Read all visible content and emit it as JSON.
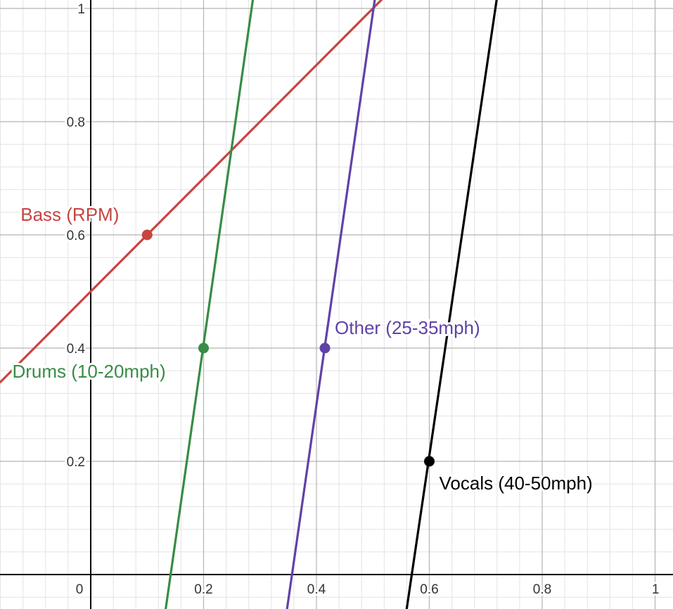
{
  "chart_data": {
    "type": "line",
    "title": "",
    "xlabel": "",
    "ylabel": "",
    "xlim": [
      -0.16,
      1.03
    ],
    "ylim": [
      -0.06,
      1.02
    ],
    "grid": true,
    "x_ticks": [
      {
        "value": 0,
        "label": "0"
      },
      {
        "value": 0.2,
        "label": "0.2"
      },
      {
        "value": 0.4,
        "label": "0.4"
      },
      {
        "value": 0.6,
        "label": "0.6"
      },
      {
        "value": 0.8,
        "label": "0.8"
      },
      {
        "value": 1,
        "label": "1"
      }
    ],
    "y_ticks": [
      {
        "value": 0.2,
        "label": "0.2"
      },
      {
        "value": 0.4,
        "label": "0.4"
      },
      {
        "value": 0.6,
        "label": "0.6"
      },
      {
        "value": 0.8,
        "label": "0.8"
      },
      {
        "value": 1,
        "label": "1"
      }
    ],
    "series": [
      {
        "name": "Bass (RPM)",
        "color": "#c74440",
        "line": [
          [
            -0.16,
            0.34
          ],
          [
            0.52,
            1.02
          ]
        ],
        "point": [
          0.1,
          0.6
        ]
      },
      {
        "name": "Drums (10-20mph)",
        "color": "#388c46",
        "line": [
          [
            0.133,
            -0.06
          ],
          [
            0.288,
            1.02
          ]
        ],
        "point": [
          0.2,
          0.4
        ]
      },
      {
        "name": "Other (25-35mph)",
        "color": "#6042a6",
        "line": [
          [
            0.348,
            -0.06
          ],
          [
            0.504,
            1.02
          ]
        ],
        "point": [
          0.415,
          0.4
        ]
      },
      {
        "name": "Vocals (40-50mph)",
        "color": "#000000",
        "line": [
          [
            0.56,
            -0.06
          ],
          [
            0.72,
            1.02
          ]
        ],
        "point": [
          0.6,
          0.2
        ]
      }
    ]
  }
}
